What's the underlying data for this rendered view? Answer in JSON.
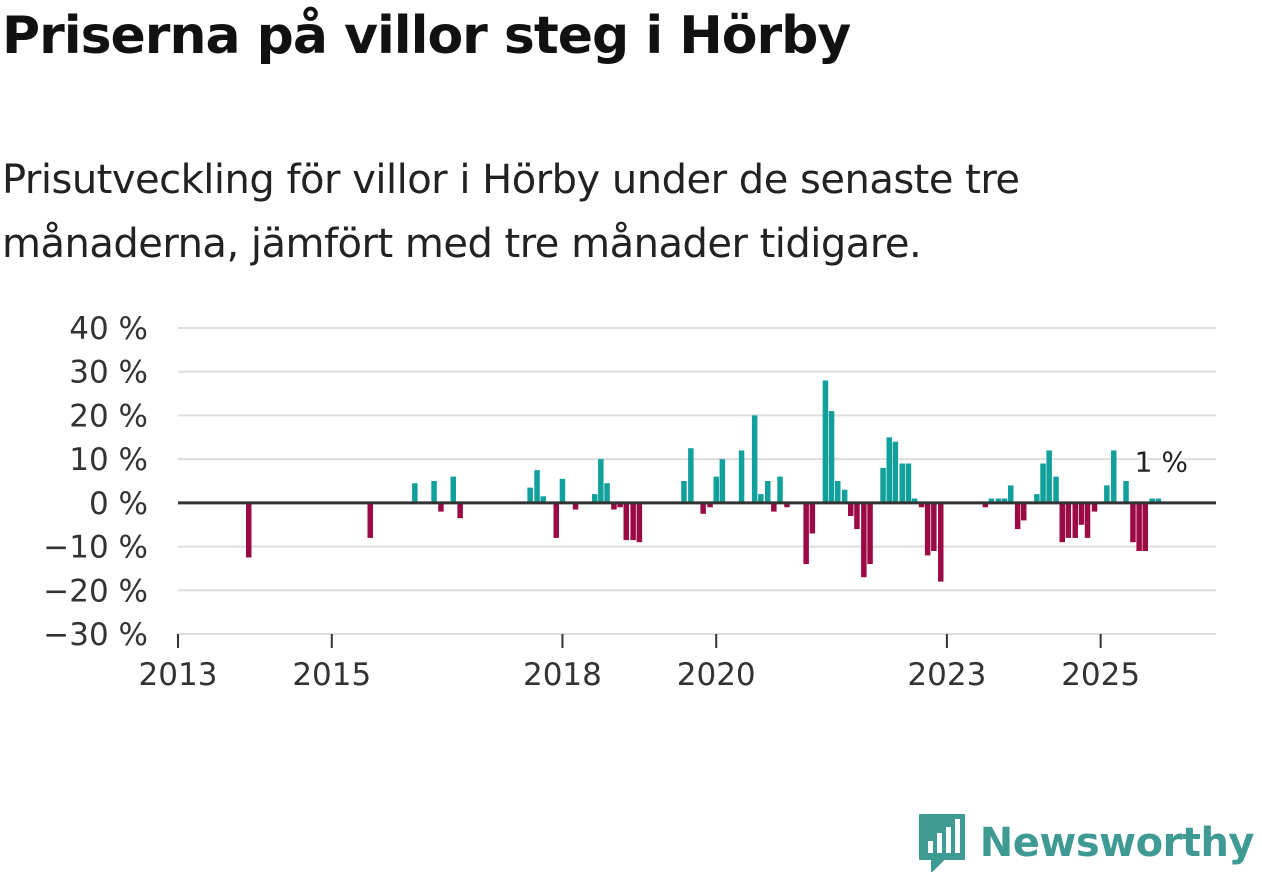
{
  "header": {
    "title": "Priserna på villor steg i Hörby",
    "subtitle": "Prisutveckling för villor i Hörby under de senaste tre månaderna, jämfört med tre månader tidigare."
  },
  "brand": {
    "name": "Newsworthy",
    "color": "#3f9a94"
  },
  "colors": {
    "positive": "#11a09b",
    "negative": "#9b0a45",
    "grid": "#dddddd",
    "zero": "#333333"
  },
  "chart_data": {
    "type": "bar",
    "title": "Priserna på villor steg i Hörby",
    "xlabel": "",
    "ylabel": "",
    "ylim": [
      -30,
      40
    ],
    "xlim": [
      2013,
      2026.5
    ],
    "y_ticks": [
      40,
      30,
      20,
      10,
      0,
      -10,
      -20,
      -30
    ],
    "y_tick_labels": [
      "40 %",
      "30 %",
      "20 %",
      "10 %",
      "0 %",
      "−10 %",
      "−20 %",
      "−30 %"
    ],
    "x_ticks": [
      2013,
      2015,
      2018,
      2020,
      2023,
      2025
    ],
    "x_tick_labels": [
      "2013",
      "2015",
      "2018",
      "2020",
      "2023",
      "2025"
    ],
    "annotation": {
      "text": "1 %",
      "x": 2025.75,
      "y": 1
    },
    "x": [
      2013.92,
      2015.5,
      2016.08,
      2016.33,
      2016.42,
      2016.58,
      2016.67,
      2017.58,
      2017.67,
      2017.75,
      2017.92,
      2018.0,
      2018.17,
      2018.42,
      2018.5,
      2018.58,
      2018.67,
      2018.75,
      2018.83,
      2018.92,
      2019.0,
      2019.58,
      2019.67,
      2019.83,
      2019.92,
      2020.0,
      2020.08,
      2020.33,
      2020.5,
      2020.58,
      2020.67,
      2020.75,
      2020.83,
      2020.92,
      2021.17,
      2021.25,
      2021.42,
      2021.5,
      2021.58,
      2021.67,
      2021.75,
      2021.83,
      2021.92,
      2022.0,
      2022.17,
      2022.25,
      2022.33,
      2022.42,
      2022.5,
      2022.58,
      2022.67,
      2022.75,
      2022.83,
      2022.92,
      2023.5,
      2023.58,
      2023.67,
      2023.75,
      2023.83,
      2023.92,
      2024.0,
      2024.17,
      2024.25,
      2024.33,
      2024.42,
      2024.5,
      2024.58,
      2024.67,
      2024.75,
      2024.83,
      2024.92,
      2025.08,
      2025.17,
      2025.33,
      2025.42,
      2025.5,
      2025.58,
      2025.67,
      2025.75
    ],
    "values": [
      -12.5,
      -8,
      4.5,
      5,
      -2,
      6,
      -3.5,
      3.5,
      7.5,
      1.5,
      -8,
      5.5,
      -1.5,
      2,
      10,
      4.5,
      -1.5,
      -1,
      -8.5,
      -8.5,
      -9,
      5,
      12.5,
      -2.5,
      -1,
      6,
      10,
      12,
      20,
      2,
      5,
      -2,
      6,
      -1,
      -14,
      -7,
      28,
      21,
      5,
      3,
      -3,
      -6,
      -17,
      -14,
      8,
      15,
      14,
      9,
      9,
      1,
      -1,
      -12,
      -11,
      -18,
      -1,
      1,
      1,
      1,
      4,
      -6,
      -4,
      2,
      9,
      12,
      6,
      -9,
      -8,
      -8,
      -5,
      -8,
      -2,
      4,
      12,
      5,
      -9,
      -11,
      -11,
      1,
      1
    ]
  }
}
